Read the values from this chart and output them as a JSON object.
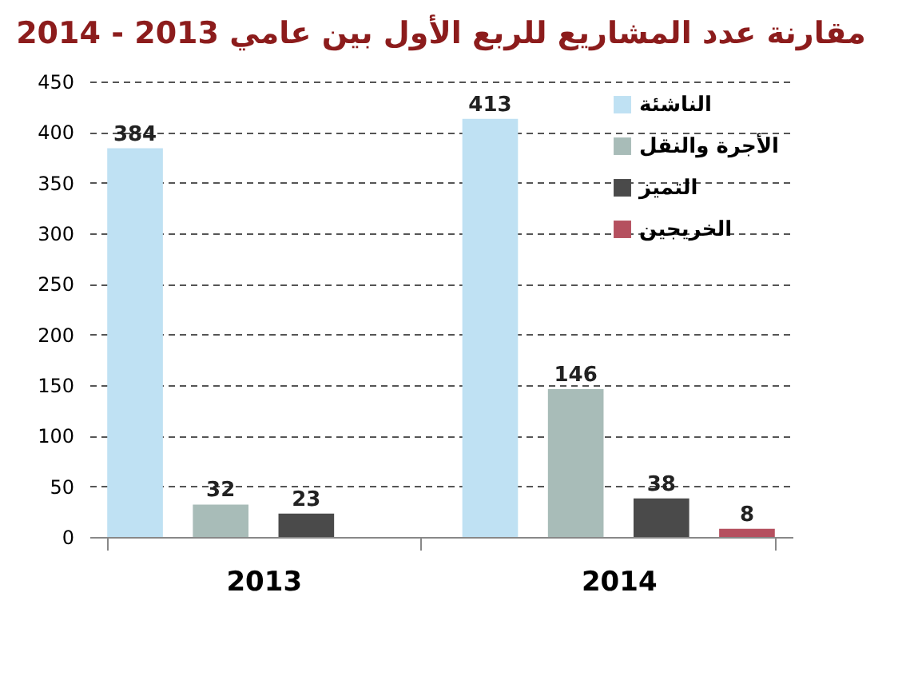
{
  "chart_data": {
    "type": "bar",
    "title": "مقارنة عدد المشاريع للربع الأول بين عامي 2013 - 2014",
    "categories": [
      "2013",
      "2014"
    ],
    "series": [
      {
        "name": "الناشئة",
        "color": "#bfe1f3",
        "values": [
          384,
          413
        ]
      },
      {
        "name": "الأجرة والنقل",
        "color": "#a8bcb8",
        "values": [
          32,
          146
        ]
      },
      {
        "name": "التميز",
        "color": "#4a4a4a",
        "values": [
          23,
          38
        ]
      },
      {
        "name": "الخريجين",
        "color": "#b5505f",
        "values": [
          null,
          8
        ]
      }
    ],
    "ylim": [
      0,
      450
    ],
    "yticks": [
      0,
      50,
      100,
      150,
      200,
      250,
      300,
      350,
      400,
      450
    ],
    "grid": "y",
    "legend": "top right",
    "data_labels": true
  }
}
